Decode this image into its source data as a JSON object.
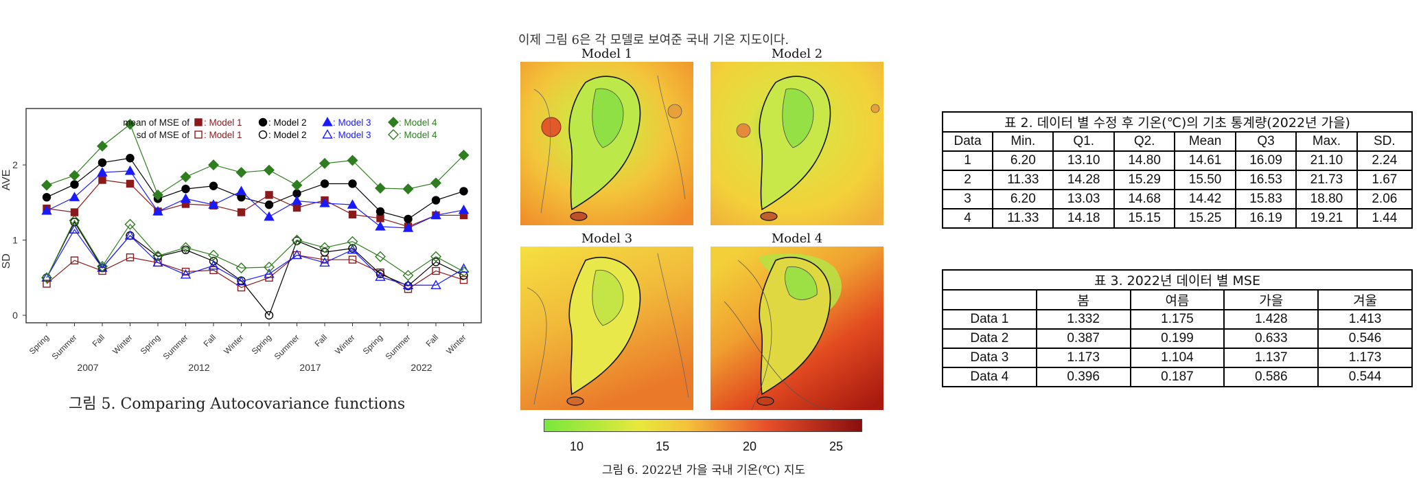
{
  "left_figure": {
    "caption": "그림 5. Comparing Autocovariance functions",
    "legend": {
      "row1_prefix": "mean of MSE of",
      "row2_prefix": "sd of MSE of",
      "models": [
        "Model 1",
        "Model 2",
        "Model 3",
        "Model 4"
      ],
      "colors": [
        "#8b1a1a",
        "#000000",
        "#1a1aff",
        "#2e7d1e"
      ]
    }
  },
  "chart_data": {
    "type": "line",
    "ylabel_top": "AVE",
    "ylabel_bottom": "SD",
    "y_ticks": [
      "2",
      "1",
      "0"
    ],
    "x_ticks": [
      "Spring",
      "Summer",
      "Fall",
      "Winter",
      "Spring",
      "Summer",
      "Fall",
      "Winter",
      "Spring",
      "Summer",
      "Fall",
      "Winter",
      "Spring",
      "Summer",
      "Fall",
      "Winter"
    ],
    "year_labels": [
      "2007",
      "2012",
      "2017",
      "2022"
    ],
    "mean_series": [
      {
        "name": "Model 1",
        "values": [
          1.42,
          1.37,
          1.8,
          1.75,
          1.38,
          1.48,
          1.46,
          1.37,
          1.6,
          1.43,
          1.53,
          1.34,
          1.29,
          1.18,
          1.33,
          1.33
        ]
      },
      {
        "name": "Model 2",
        "values": [
          1.57,
          1.74,
          2.03,
          2.09,
          1.55,
          1.68,
          1.72,
          1.57,
          1.47,
          1.62,
          1.75,
          1.75,
          1.38,
          1.28,
          1.53,
          1.65
        ]
      },
      {
        "name": "Model 3",
        "values": [
          1.39,
          1.57,
          1.9,
          1.92,
          1.38,
          1.55,
          1.47,
          1.65,
          1.31,
          1.52,
          1.49,
          1.47,
          1.18,
          1.16,
          1.33,
          1.4
        ]
      },
      {
        "name": "Model 4",
        "values": [
          1.73,
          1.86,
          2.25,
          2.54,
          1.6,
          1.84,
          2.0,
          1.9,
          1.93,
          1.73,
          2.02,
          2.06,
          1.69,
          1.68,
          1.76,
          2.13
        ]
      }
    ],
    "sd_series": [
      {
        "name": "Model 1",
        "values": [
          0.42,
          0.73,
          0.59,
          0.77,
          0.7,
          0.58,
          0.6,
          0.37,
          0.5,
          0.8,
          0.74,
          0.74,
          0.57,
          0.35,
          0.59,
          0.47
        ]
      },
      {
        "name": "Model 2",
        "values": [
          0.5,
          1.24,
          0.63,
          1.06,
          0.78,
          0.87,
          0.72,
          0.46,
          0.0,
          0.99,
          0.84,
          0.89,
          0.55,
          0.39,
          0.71,
          0.53
        ]
      },
      {
        "name": "Model 3",
        "values": [
          0.5,
          1.14,
          0.63,
          1.06,
          0.7,
          0.54,
          0.66,
          0.45,
          0.55,
          0.8,
          0.7,
          0.87,
          0.51,
          0.4,
          0.4,
          0.62
        ]
      },
      {
        "name": "Model 4",
        "values": [
          0.5,
          1.26,
          0.65,
          1.21,
          0.79,
          0.9,
          0.8,
          0.63,
          0.64,
          1.0,
          0.9,
          0.98,
          0.78,
          0.53,
          0.78,
          0.58
        ]
      }
    ],
    "ylim": [
      -0.1,
      2.75
    ]
  },
  "middle_figure": {
    "top_cut_text": "이제 그림 6은 각 모델로 보여준 국내 기온 지도이다.",
    "panels": [
      "Model 1",
      "Model 2",
      "Model 3",
      "Model 4"
    ],
    "colorbar_ticks": [
      "10",
      "15",
      "20",
      "25"
    ],
    "caption": "그림 6. 2022년 가을 국내 기온(℃) 지도"
  },
  "table2": {
    "title": "표 2. 데이터 별 수정 후 기온(℃)의 기초 통계량(2022년 가을)",
    "headers": [
      "Data",
      "Min.",
      "Q1.",
      "Q2.",
      "Mean",
      "Q3",
      "Max.",
      "SD."
    ],
    "rows": [
      [
        "1",
        "6.20",
        "13.10",
        "14.80",
        "14.61",
        "16.09",
        "21.10",
        "2.24"
      ],
      [
        "2",
        "11.33",
        "14.28",
        "15.29",
        "15.50",
        "16.53",
        "21.73",
        "1.67"
      ],
      [
        "3",
        "6.20",
        "13.03",
        "14.68",
        "14.42",
        "15.83",
        "18.80",
        "2.06"
      ],
      [
        "4",
        "11.33",
        "14.18",
        "15.15",
        "15.25",
        "16.19",
        "19.21",
        "1.44"
      ]
    ]
  },
  "table3": {
    "title": "표 3. 2022년 데이터 별 MSE",
    "headers": [
      "",
      "봄",
      "여름",
      "가을",
      "겨울"
    ],
    "rows": [
      [
        "Data 1",
        "1.332",
        "1.175",
        "1.428",
        "1.413"
      ],
      [
        "Data 2",
        "0.387",
        "0.199",
        "0.633",
        "0.546"
      ],
      [
        "Data 3",
        "1.173",
        "1.104",
        "1.137",
        "1.173"
      ],
      [
        "Data 4",
        "0.396",
        "0.187",
        "0.586",
        "0.544"
      ]
    ]
  }
}
